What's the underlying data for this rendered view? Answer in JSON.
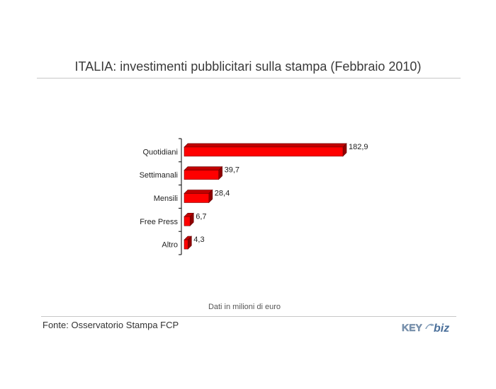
{
  "chart_data": {
    "type": "bar",
    "orientation": "horizontal",
    "title": "ITALIA: investimenti pubblicitari sulla stampa (Febbraio 2010)",
    "categories": [
      "Quotidiani",
      "Settimanali",
      "Mensili",
      "Free Press",
      "Altro"
    ],
    "values": [
      182.9,
      39.7,
      28.4,
      6.7,
      4.3
    ],
    "value_labels": [
      "182,9",
      "39,7",
      "28,4",
      "6,7",
      "4,3"
    ],
    "xlim": [
      0,
      182.9
    ],
    "bar_color": "#ff0000",
    "grid": false,
    "legend": "none"
  },
  "note": "Dati in milioni di euro",
  "source": "Fonte: Osservatorio Stampa FCP",
  "logo": {
    "key_text": "KEY",
    "biz_text": "biz",
    "key_color": "#7f98b4",
    "biz_color": "#4a6f9a"
  }
}
